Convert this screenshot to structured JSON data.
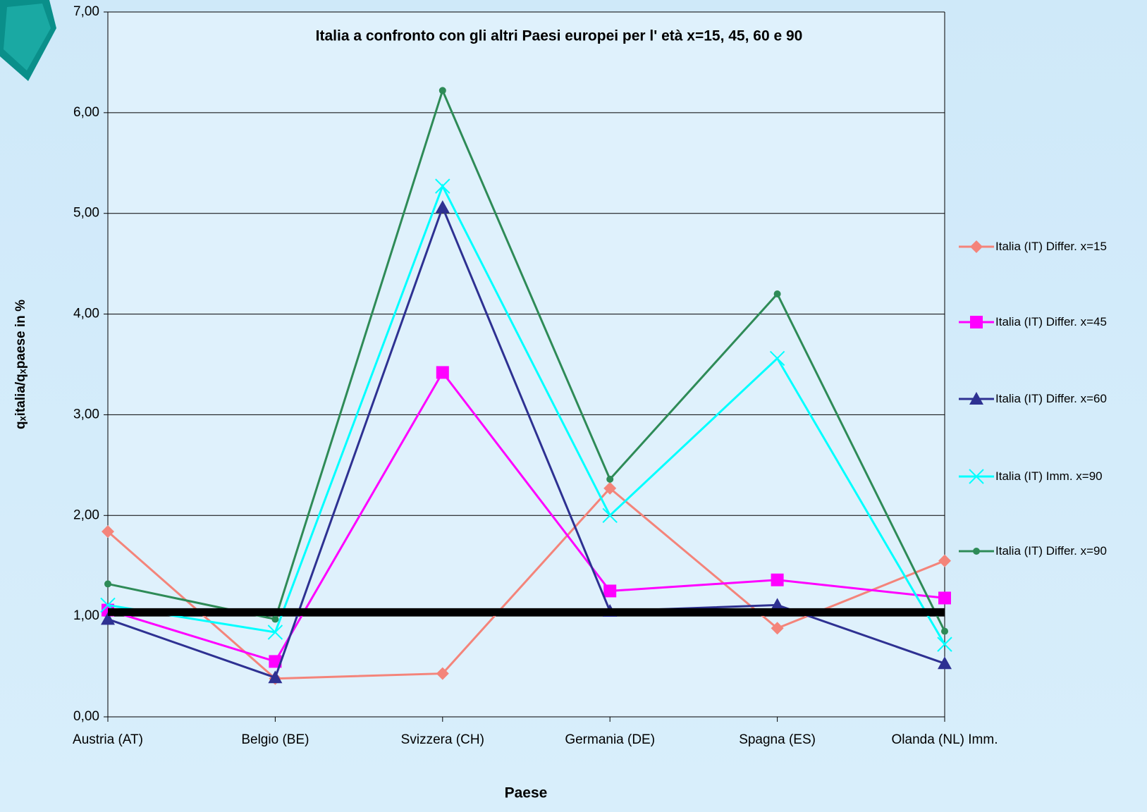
{
  "chart_data": {
    "type": "line",
    "title": "Italia a confronto con gli altri Paesi europei per l' età x=15, 45, 60 e 90",
    "x_label": "Paese",
    "y_label": "qₓitalia/qₓpaese in %",
    "categories": [
      "Austria (AT)",
      "Belgio (BE)",
      "Svizzera (CH)",
      "Germania (DE)",
      "Spagna (ES)",
      "Olanda (NL) Imm."
    ],
    "series": [
      {
        "name": "Italia (IT) Differ. x=15",
        "color": "#f4847a",
        "marker": "diamond",
        "values": [
          1.84,
          0.38,
          0.43,
          2.27,
          0.88,
          1.55
        ]
      },
      {
        "name": "Italia (IT) Differ. x=45",
        "color": "#ff00ff",
        "marker": "square",
        "values": [
          1.06,
          0.55,
          3.42,
          1.25,
          1.36,
          1.18
        ]
      },
      {
        "name": "Italia (IT) Differ. x=60",
        "color": "#2e3192",
        "marker": "triangle",
        "values": [
          0.97,
          0.39,
          5.06,
          1.05,
          1.11,
          0.53
        ]
      },
      {
        "name": "Italia (IT) Imm. x=90",
        "color": "#00ffff",
        "marker": "x",
        "values": [
          1.11,
          0.84,
          5.27,
          2.0,
          3.56,
          0.72
        ]
      },
      {
        "name": "Italia (IT) Differ. x=90",
        "color": "#2e8b57",
        "marker": "circle",
        "values": [
          1.32,
          0.97,
          6.22,
          2.36,
          4.2,
          0.85
        ]
      }
    ],
    "reference_line": {
      "value": 1.04,
      "color": "#000000"
    },
    "ylim": [
      0,
      7
    ],
    "yticks": [
      {
        "value": 0,
        "label": "0,00"
      },
      {
        "value": 1,
        "label": "1,00"
      },
      {
        "value": 2,
        "label": "2,00"
      },
      {
        "value": 3,
        "label": "3,00"
      },
      {
        "value": 4,
        "label": "4,00"
      },
      {
        "value": 5,
        "label": "5,00"
      },
      {
        "value": 6,
        "label": "6,00"
      },
      {
        "value": 7,
        "label": "7,00"
      }
    ],
    "grid": true,
    "legend": "right"
  }
}
